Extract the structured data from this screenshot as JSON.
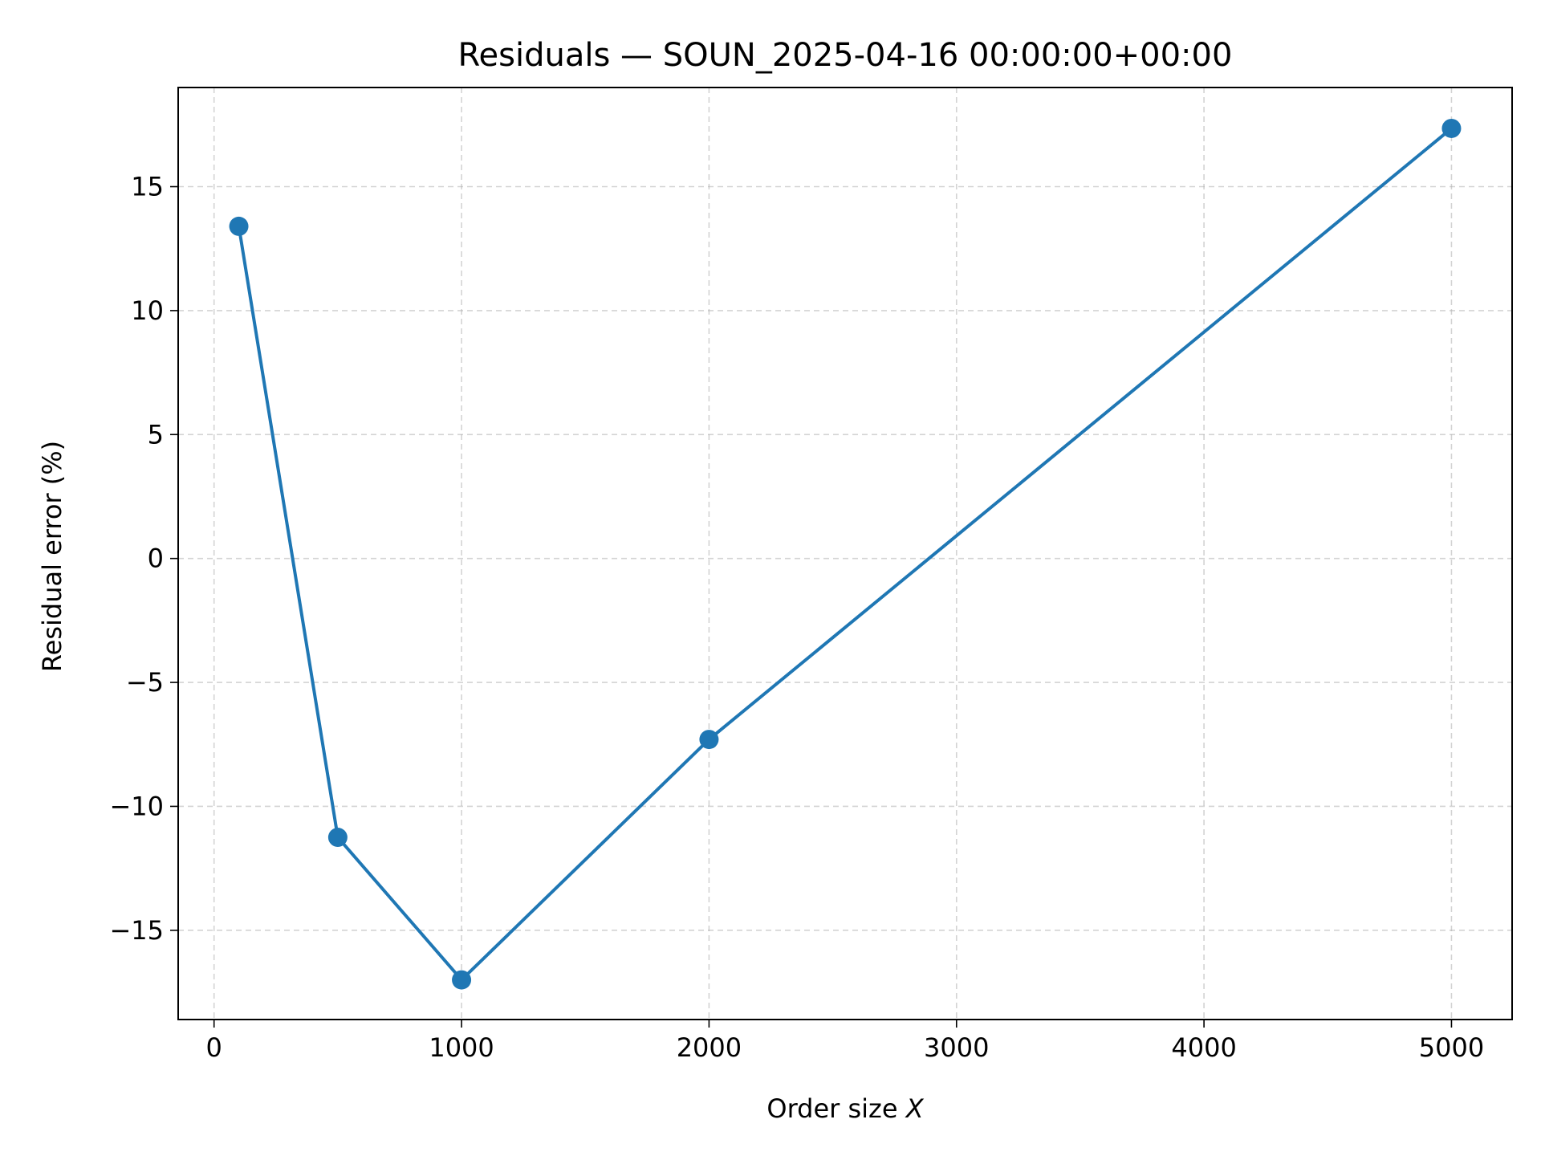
{
  "chart_data": {
    "type": "line",
    "title": "Residuals — SOUN_2025-04-16 00:00:00+00:00",
    "xlabel_prefix": "Order size ",
    "xlabel_var": "X",
    "ylabel": "Residual error (%)",
    "x": [
      100,
      500,
      1000,
      2000,
      5000
    ],
    "series": [
      {
        "values": [
          13.4,
          -11.25,
          -17.0,
          -7.3,
          17.35
        ],
        "color": "#1f77b4",
        "marker": "circle"
      }
    ],
    "xlim": [
      -145,
      5245
    ],
    "ylim": [
      -18.6,
      19.0
    ],
    "xticks": [
      0,
      1000,
      2000,
      3000,
      4000,
      5000
    ],
    "xtick_labels": [
      "0",
      "1000",
      "2000",
      "3000",
      "4000",
      "5000"
    ],
    "yticks": [
      -15,
      -10,
      -5,
      0,
      5,
      10,
      15
    ],
    "ytick_labels": [
      "−15",
      "−10",
      "−5",
      "0",
      "5",
      "10",
      "15"
    ],
    "grid": true
  }
}
